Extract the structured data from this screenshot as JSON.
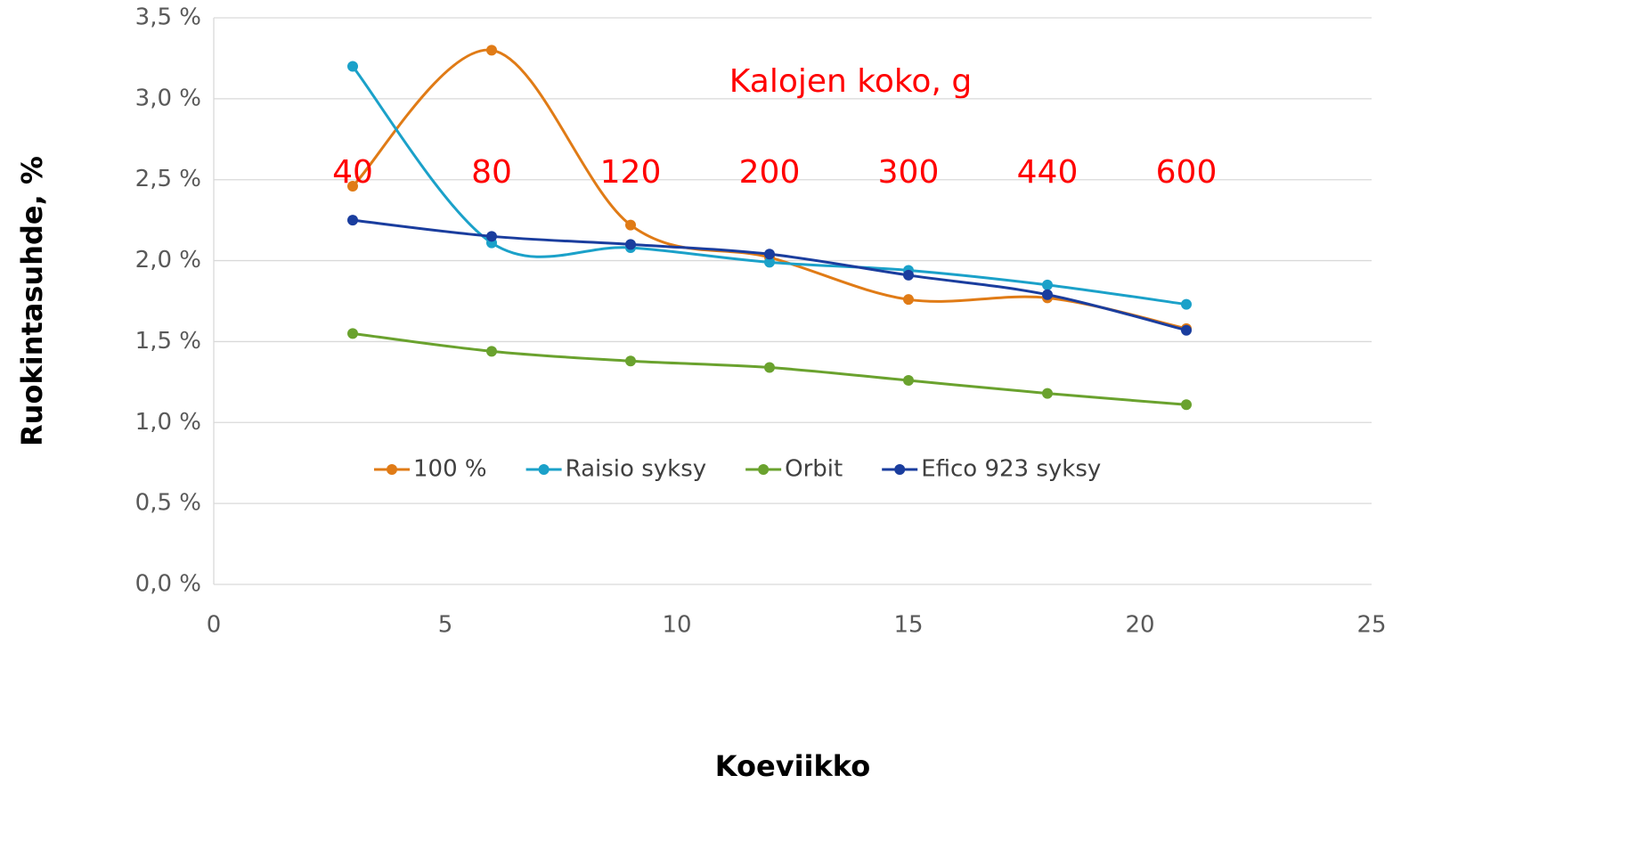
{
  "chart_data": {
    "type": "line",
    "x": [
      3,
      6,
      9,
      12,
      15,
      18,
      21
    ],
    "series": [
      {
        "name": "100 %",
        "color": "#e07b16",
        "values": [
          2.46,
          3.3,
          2.22,
          2.02,
          1.76,
          1.77,
          1.58
        ]
      },
      {
        "name": "Raisio syksy",
        "color": "#1ba1c9",
        "values": [
          3.2,
          2.11,
          2.08,
          1.99,
          1.94,
          1.85,
          1.73
        ]
      },
      {
        "name": "Orbit",
        "color": "#6aa22e",
        "values": [
          1.55,
          1.44,
          1.38,
          1.34,
          1.26,
          1.18,
          1.11
        ]
      },
      {
        "name": "Efico 923 syksy",
        "color": "#1a3d9e",
        "values": [
          2.25,
          2.15,
          2.1,
          2.04,
          1.91,
          1.79,
          1.57
        ]
      }
    ],
    "xlabel": "Koeviikko",
    "ylabel": "Ruokintasuhde, %",
    "xlim": [
      0,
      25
    ],
    "xticks": [
      0,
      5,
      10,
      15,
      20,
      25
    ],
    "ylim": [
      0,
      3.5
    ],
    "yticks": [
      {
        "value": 0,
        "label": "0,0 %"
      },
      {
        "value": 0.5,
        "label": "0,5 %"
      },
      {
        "value": 1,
        "label": "1,0 %"
      },
      {
        "value": 1.5,
        "label": "1,5 %"
      },
      {
        "value": 2,
        "label": "2,0 %"
      },
      {
        "value": 2.5,
        "label": "2,5 %"
      },
      {
        "value": 3,
        "label": "3,0 %"
      },
      {
        "value": 3.5,
        "label": "3,5 %"
      }
    ],
    "grid": true,
    "smooth": true,
    "legend": "inside-bottom",
    "annotation_title": "Kalojen koko, g",
    "annotations": [
      "40",
      "80",
      "120",
      "200",
      "300",
      "440",
      "600"
    ],
    "annotation_color": "#ff0000"
  }
}
